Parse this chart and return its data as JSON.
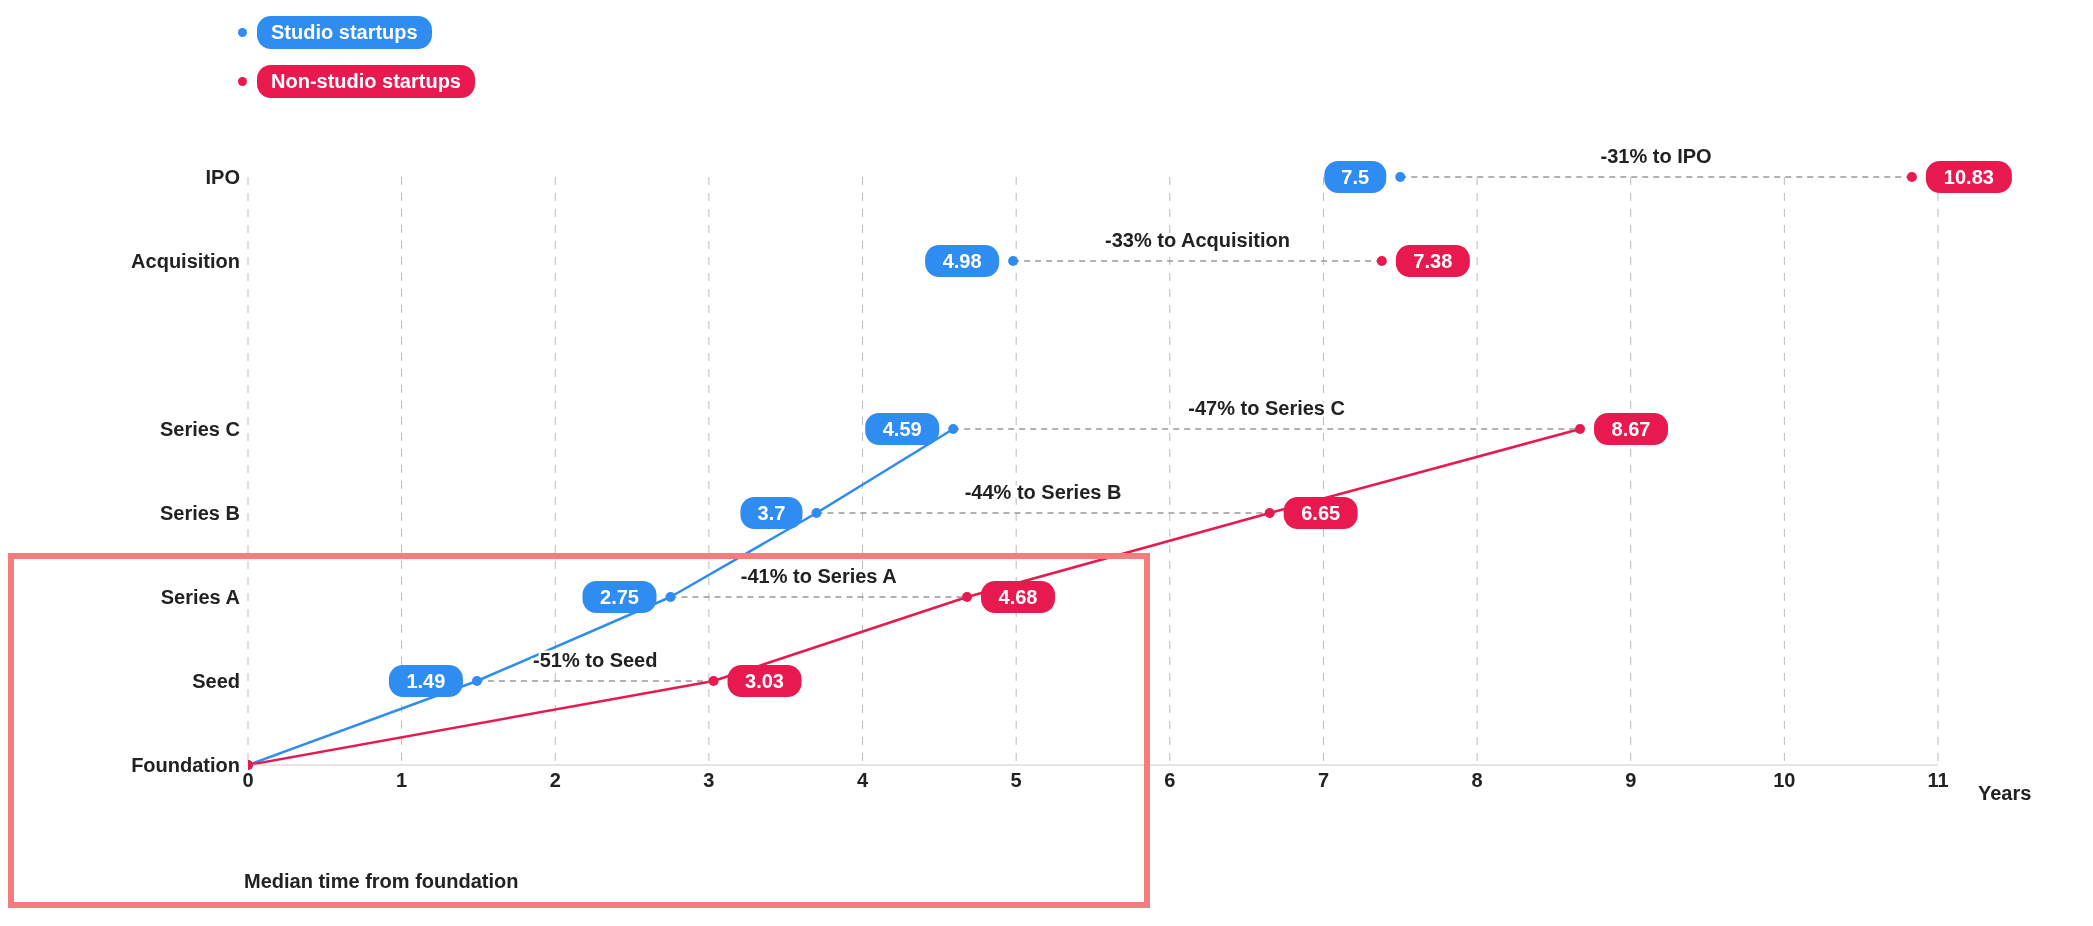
{
  "chart_data": {
    "type": "line",
    "orientation": "horizontal",
    "xlabel": "Years",
    "categories": [
      "IPO",
      "Acquisition",
      null,
      "Series C",
      "Series B",
      "Series A",
      "Seed",
      "Foundation"
    ],
    "series": [
      {
        "name": "Studio startups",
        "color": "#2f8cf0",
        "values": [
          null,
          null,
          null,
          4.59,
          3.7,
          2.75,
          1.49,
          0
        ],
        "value_labels": [
          null,
          null,
          null,
          "4.59",
          "3.7",
          "2.75",
          "1.49",
          null
        ]
      },
      {
        "name": "Non-studio startups",
        "color": "#e8194f",
        "values": [
          null,
          null,
          null,
          8.67,
          6.65,
          4.68,
          3.03,
          0
        ],
        "value_labels": [
          null,
          null,
          null,
          "8.67",
          "6.65",
          "4.68",
          "3.03",
          null
        ]
      },
      {
        "type": "scatter",
        "color": "#2f8cf0",
        "values": [
          7.5,
          4.98,
          null,
          null,
          null,
          null,
          null,
          null
        ],
        "value_labels": [
          "7.5",
          "4.98",
          null,
          null,
          null,
          null,
          null,
          null
        ]
      },
      {
        "type": "scatter",
        "color": "#e8194f",
        "values": [
          10.83,
          7.38,
          null,
          null,
          null,
          null,
          null,
          null
        ],
        "value_labels": [
          "10.83",
          "7.38",
          null,
          null,
          null,
          null,
          null,
          null
        ]
      }
    ],
    "xlim": [
      0,
      11
    ],
    "xticks": [
      0,
      1,
      2,
      3,
      4,
      5,
      6,
      7,
      8,
      9,
      10,
      11
    ],
    "grid": "x",
    "legend": "top left",
    "marker": "circle",
    "annotations": [
      "-31% to IPO",
      "-33% to Acquisition",
      "-47% to Series C",
      "-44% to Series B",
      "-41% to Series A",
      "-51% to Seed",
      "Median time from foundation"
    ]
  }
}
